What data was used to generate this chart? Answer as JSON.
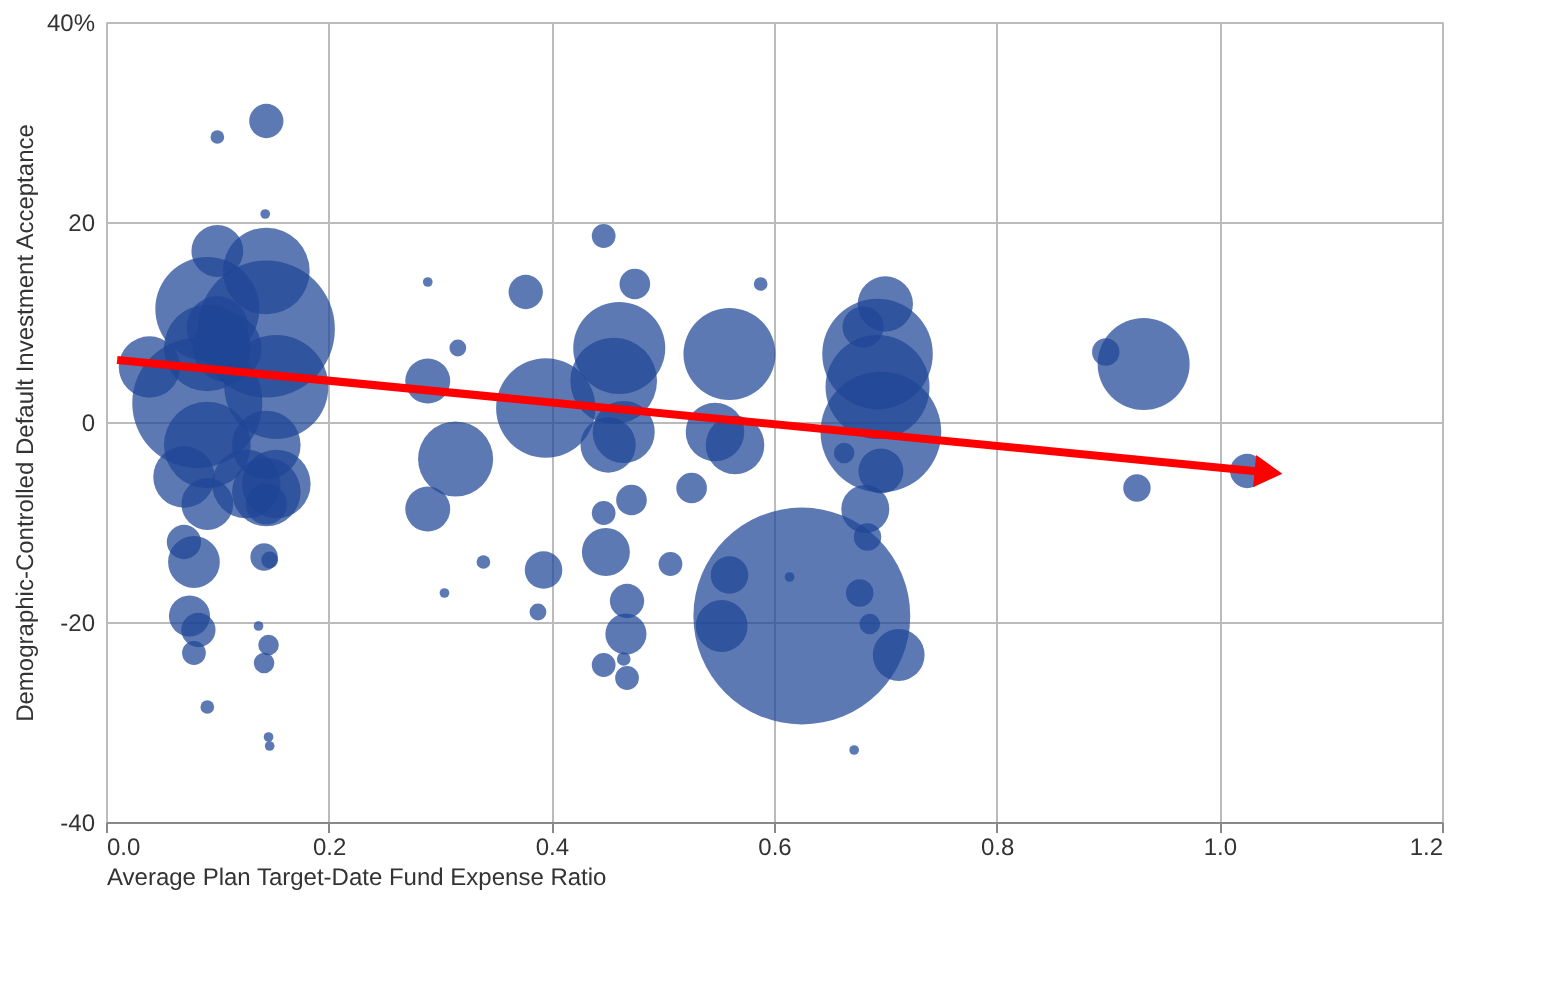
{
  "chart_data": {
    "type": "bubble",
    "xlabel": "Average Plan Target-Date Fund Expense Ratio",
    "ylabel": "Demographic-Controlled Default Investment Acceptance",
    "xlim": [
      0,
      1.2
    ],
    "ylim": [
      -40,
      40
    ],
    "xticks": [
      {
        "value": 0,
        "label": "0.0"
      },
      0.2,
      0.4,
      0.6,
      0.8,
      {
        "value": 1,
        "label": "1.0"
      },
      1.2
    ],
    "yticks": [
      -40,
      -20,
      0,
      20,
      {
        "value": 40,
        "label": "40%"
      }
    ],
    "grid": true,
    "legend": false,
    "series": [
      {
        "color": "#1e4595",
        "x": [
          0.144,
          0.1,
          0.143,
          0.1,
          0.144,
          0.091,
          0.082,
          0.091,
          0.153,
          0.144,
          0.091,
          0.144,
          0.126,
          0.153,
          0.091,
          0.079,
          0.07,
          0.144,
          0.147,
          0.142,
          0.075,
          0.083,
          0.079,
          0.091,
          0.146,
          0.147,
          0.137,
          0.146,
          0.142,
          0.109,
          0.039,
          0.1,
          0.144,
          0.07,
          0.289,
          0.377,
          0.447,
          0.475,
          0.588,
          0.316,
          0.289,
          0.395,
          0.461,
          0.456,
          0.451,
          0.465,
          0.56,
          0.547,
          0.565,
          0.314,
          0.289,
          0.526,
          0.472,
          0.447,
          0.449,
          0.339,
          0.393,
          0.507,
          0.304,
          0.388,
          0.468,
          0.467,
          0.447,
          0.468,
          0.465,
          0.693,
          0.7,
          0.693,
          0.696,
          0.68,
          0.696,
          0.682,
          0.684,
          0.663,
          0.625,
          0.56,
          0.553,
          0.677,
          0.686,
          0.712,
          0.614,
          0.672,
          0.932,
          0.898,
          0.926,
          1.025
        ],
        "values": [
          30.1,
          28.5,
          20.8,
          17.1,
          9.3,
          11.3,
          1.9,
          7.4,
          3.5,
          15.1,
          -2.3,
          -2.3,
          -6.2,
          -6.2,
          -8.2,
          -14,
          -12,
          -8.2,
          -13.8,
          -13.5,
          -19.4,
          -20.8,
          -23.1,
          -28.5,
          -31.5,
          -32.4,
          -20.4,
          -22.3,
          -24.1,
          7.4,
          5.5,
          9.5,
          -7.0,
          -5.5,
          14.0,
          13.0,
          18.6,
          13.8,
          13.8,
          7.4,
          4.1,
          1.4,
          7.4,
          4.1,
          -2.3,
          -1.0,
          6.8,
          -1.0,
          -2.3,
          -3.7,
          -8.7,
          -6.6,
          -7.8,
          -9.1,
          -13.0,
          -14.0,
          -14.8,
          -14.2,
          -17.1,
          -19.0,
          -17.9,
          -21.2,
          -24.3,
          -25.6,
          -23.7,
          6.8,
          11.8,
          3.5,
          -1.0,
          9.5,
          -4.9,
          -8.7,
          -11.5,
          -3.1,
          -19.4,
          -15.3,
          -20.4,
          -17.1,
          -20.2,
          -23.3,
          -15.5,
          -32.8,
          5.8,
          7.0,
          -6.6,
          -4.9
        ],
        "sizes": [
          0.025,
          0.004,
          0.002,
          0.057,
          0.4,
          0.23,
          0.36,
          0.16,
          0.23,
          0.16,
          0.16,
          0.1,
          0.1,
          0.1,
          0.057,
          0.057,
          0.025,
          0.036,
          0.006,
          0.016,
          0.036,
          0.025,
          0.012,
          0.004,
          0.002,
          0.002,
          0.002,
          0.009,
          0.009,
          0.1,
          0.08,
          0.08,
          0.1,
          0.08,
          0.002,
          0.025,
          0.012,
          0.02,
          0.004,
          0.006,
          0.043,
          0.21,
          0.18,
          0.16,
          0.065,
          0.082,
          0.18,
          0.073,
          0.073,
          0.12,
          0.043,
          0.02,
          0.02,
          0.012,
          0.049,
          0.004,
          0.03,
          0.012,
          0.002,
          0.006,
          0.025,
          0.036,
          0.012,
          0.012,
          0.004,
          0.26,
          0.065,
          0.23,
          0.31,
          0.036,
          0.043,
          0.049,
          0.016,
          0.009,
          1,
          0.03,
          0.057,
          0.016,
          0.009,
          0.057,
          0.002,
          0.002,
          0.18,
          0.016,
          0.016,
          0.025
        ]
      },
      {
        "type": "line",
        "color": "#ff0000",
        "x": [
          0.01,
          1.04
        ],
        "values": [
          6.2,
          -5.0
        ]
      }
    ]
  }
}
